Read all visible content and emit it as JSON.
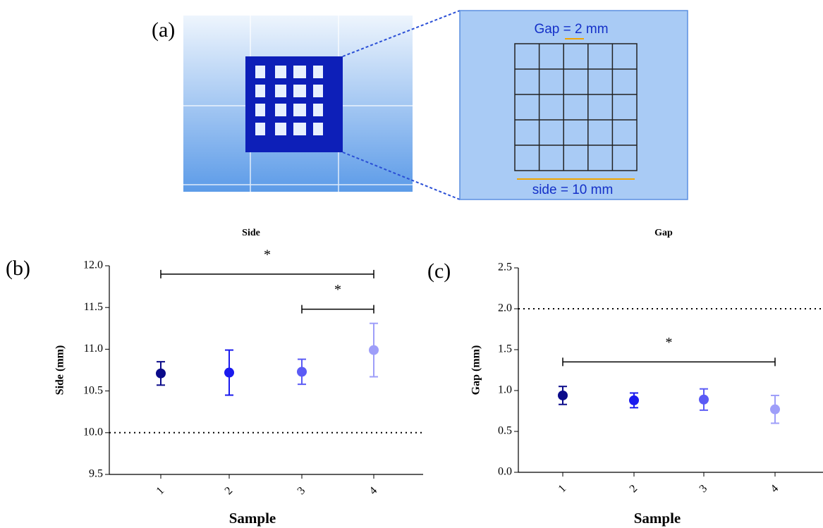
{
  "panel_labels": [
    "(a)",
    "(b)",
    "(c)"
  ],
  "diagram": {
    "gap_label": "Gap = 2 mm",
    "side_label": "side = 10 mm"
  },
  "chart_data": [
    {
      "type": "errorbar",
      "title": "Side",
      "xlabel": "Sample",
      "ylabel": "Side (mm)",
      "categories": [
        "1",
        "2",
        "3",
        "4"
      ],
      "values": [
        10.71,
        10.72,
        10.73,
        10.99
      ],
      "errors": [
        0.14,
        0.27,
        0.15,
        0.32
      ],
      "colors": [
        "#0b0b8a",
        "#1a1aee",
        "#5b5bf5",
        "#9e9ef9"
      ],
      "ylim": [
        9.5,
        12.0
      ],
      "yticks": [
        9.5,
        {
          "value": 10,
          "label": "10.0"
        },
        10.5,
        {
          "value": 11,
          "label": "11.0"
        },
        11.5,
        {
          "value": 12,
          "label": "12.0"
        }
      ],
      "reference_line": 10,
      "significance": [
        {
          "between": [
            "1",
            "4"
          ],
          "y": 11.9,
          "label": "*"
        },
        {
          "between": [
            "3",
            "4"
          ],
          "y": 11.48,
          "label": "*"
        }
      ]
    },
    {
      "type": "errorbar",
      "title": "Gap",
      "xlabel": "Sample",
      "ylabel": "Gap (mm)",
      "categories": [
        "1",
        "2",
        "3",
        "4"
      ],
      "values": [
        0.94,
        0.88,
        0.89,
        0.77
      ],
      "errors": [
        0.11,
        0.09,
        0.13,
        0.17
      ],
      "colors": [
        "#0b0b8a",
        "#1a1aee",
        "#5b5bf5",
        "#9e9ef9"
      ],
      "ylim": [
        0,
        2.5
      ],
      "yticks": [
        {
          "value": 0,
          "label": "0.0"
        },
        0.5,
        {
          "value": 1,
          "label": "1.0"
        },
        1.5,
        {
          "value": 2,
          "label": "2.0"
        },
        2.5
      ],
      "reference_line": 2,
      "significance": [
        {
          "between": [
            "1",
            "4"
          ],
          "y": 1.35,
          "label": "*"
        }
      ]
    }
  ]
}
